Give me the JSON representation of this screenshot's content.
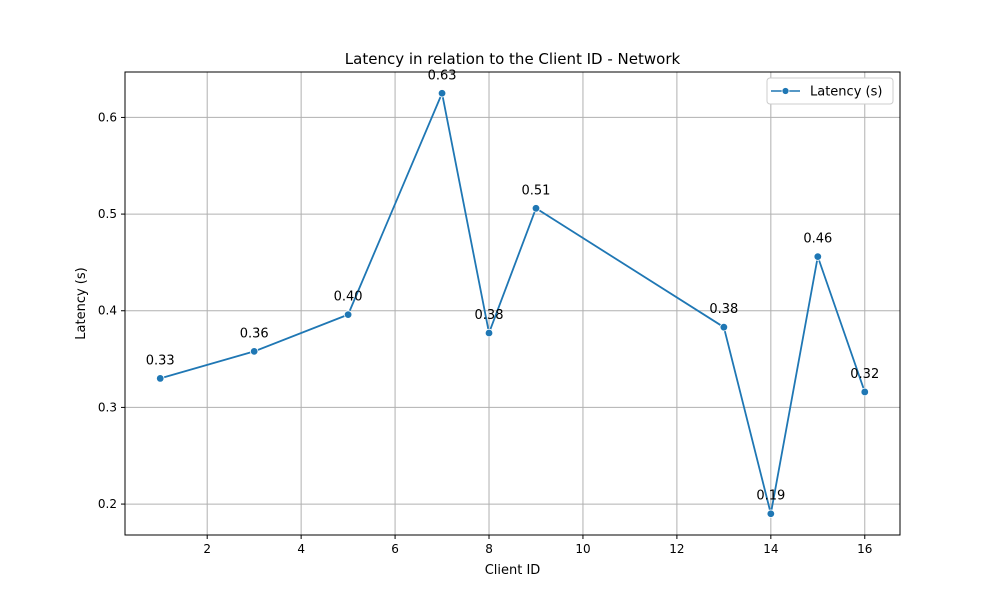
{
  "chart_data": {
    "type": "line",
    "title": "Latency in relation to the Client ID - Network",
    "xlabel": "Client ID",
    "ylabel": "Latency (s)",
    "xlim": [
      0.25,
      16.75
    ],
    "ylim": [
      0.168,
      0.647
    ],
    "xticks": [
      2,
      4,
      6,
      8,
      10,
      12,
      14,
      16
    ],
    "yticks": [
      0.2,
      0.3,
      0.4,
      0.5,
      0.6
    ],
    "xtick_labels": [
      "2",
      "4",
      "6",
      "8",
      "10",
      "12",
      "14",
      "16"
    ],
    "ytick_labels": [
      "0.2",
      "0.3",
      "0.4",
      "0.5",
      "0.6"
    ],
    "grid": true,
    "legend_position": "top-right",
    "series": [
      {
        "name": "Latency (s)",
        "color": "#1f77b4",
        "marker": "circle",
        "x": [
          1,
          3,
          5,
          7,
          8,
          9,
          13,
          14,
          15,
          16
        ],
        "y": [
          0.33,
          0.358,
          0.396,
          0.625,
          0.377,
          0.506,
          0.383,
          0.19,
          0.456,
          0.316
        ],
        "labels": [
          "0.33",
          "0.36",
          "0.40",
          "0.63",
          "0.38",
          "0.51",
          "0.38",
          "0.19",
          "0.46",
          "0.32"
        ]
      }
    ]
  }
}
